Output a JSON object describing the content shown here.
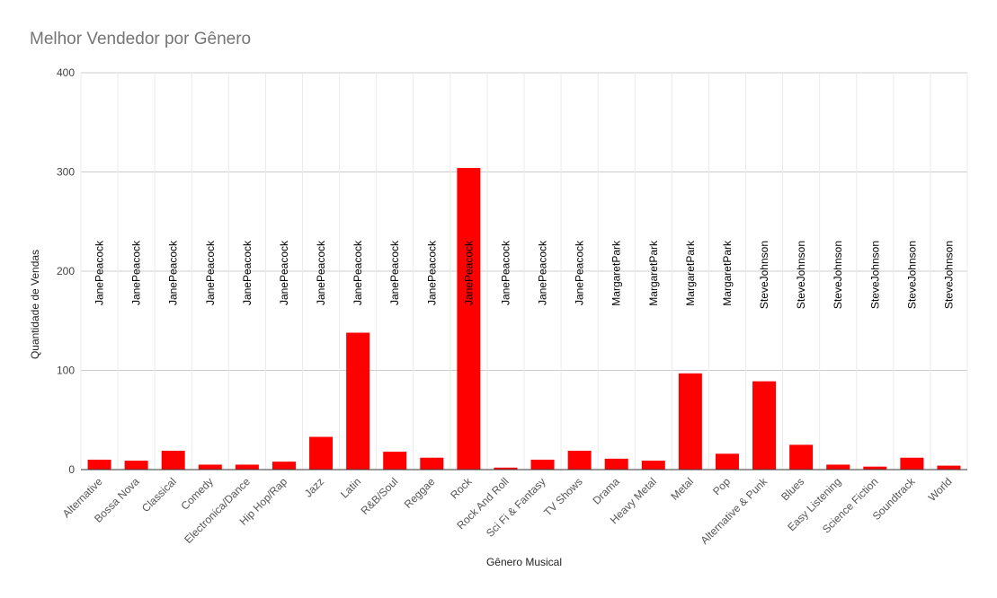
{
  "chart_data": {
    "type": "bar",
    "title": "Melhor Vendedor por Gênero",
    "xlabel": "Gênero Musical",
    "ylabel": "Quantidade de Vendas",
    "ylim": [
      0,
      400
    ],
    "yticks": [
      0,
      100,
      200,
      300,
      400
    ],
    "grid": true,
    "legend": "none",
    "bar_color": "#ff0000",
    "categories": [
      "Alternative",
      "Bossa Nova",
      "Classical",
      "Comedy",
      "Electronica/Dance",
      "Hip Hop/Rap",
      "Jazz",
      "Latin",
      "R&B/Soul",
      "Reggae",
      "Rock",
      "Rock And Roll",
      "Sci Fi & Fantasy",
      "TV Shows",
      "Drama",
      "Heavy Metal",
      "Metal",
      "Pop",
      "Alternative & Punk",
      "Blues",
      "Easy Listening",
      "Science Fiction",
      "Soundtrack",
      "World"
    ],
    "values": [
      10,
      9,
      19,
      5,
      5,
      8,
      33,
      138,
      18,
      12,
      304,
      2,
      10,
      19,
      11,
      9,
      97,
      16,
      89,
      25,
      5,
      3,
      12,
      4
    ],
    "annotations": [
      "JanePeacock",
      "JanePeacock",
      "JanePeacock",
      "JanePeacock",
      "JanePeacock",
      "JanePeacock",
      "JanePeacock",
      "JanePeacock",
      "JanePeacock",
      "JanePeacock",
      "JanePeacock",
      "JanePeacock",
      "JanePeacock",
      "JanePeacock",
      "MargaretPark",
      "MargaretPark",
      "MargaretPark",
      "MargaretPark",
      "SteveJohnson",
      "SteveJohnson",
      "SteveJohnson",
      "SteveJohnson",
      "SteveJohnson",
      "SteveJohnson"
    ]
  }
}
